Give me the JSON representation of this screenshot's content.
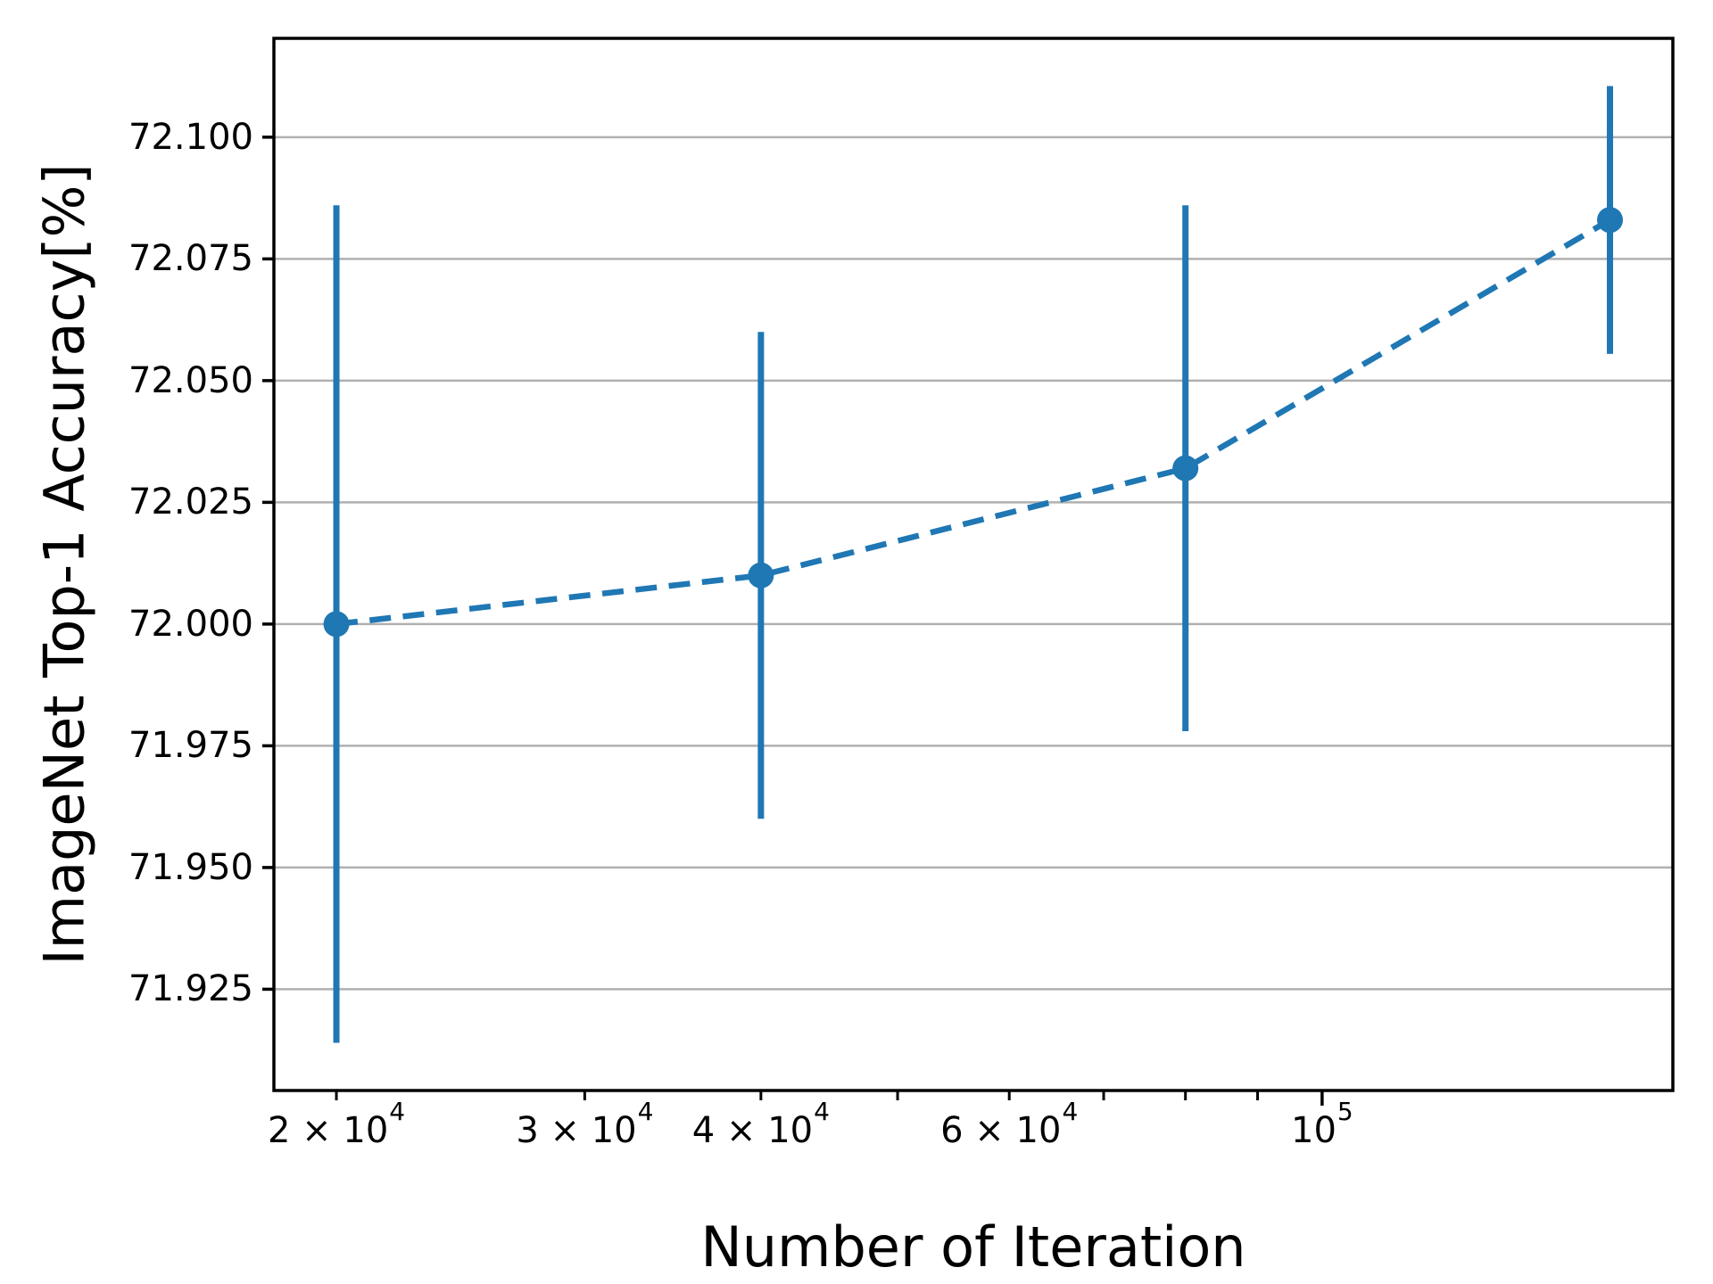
{
  "chart_data": {
    "type": "line",
    "title": "",
    "xlabel": "Number of Iteration",
    "ylabel": "ImageNet Top-1 Accuracy[%]",
    "x_scale": "log10",
    "xlim": [
      18060,
      177300
    ],
    "ylim": [
      71.9042,
      72.1203
    ],
    "grid": "horizontal-only",
    "legend": "none",
    "colors": {
      "series": "#1f77b4",
      "grid": "#b0b0b0",
      "spine": "#000000",
      "text": "#000000",
      "background": "#ffffff"
    },
    "series": [
      {
        "name": "imagenet-top1-accuracy",
        "line_style": "dashed",
        "marker": "circle",
        "x": [
          20000,
          40000,
          80000,
          160000
        ],
        "y": [
          72.0,
          72.01,
          72.032,
          72.083
        ],
        "yerr": [
          0.086,
          0.05,
          0.054,
          0.0275
        ]
      }
    ],
    "x_ticks": [
      {
        "value": 20000,
        "text": "2 × 10",
        "sup": "4",
        "major": false
      },
      {
        "value": 30000,
        "text": "3 × 10",
        "sup": "4",
        "major": false
      },
      {
        "value": 40000,
        "text": "4 × 10",
        "sup": "4",
        "major": false
      },
      {
        "value": 50000,
        "text": "",
        "sup": "",
        "major": false
      },
      {
        "value": 60000,
        "text": "6 × 10",
        "sup": "4",
        "major": false
      },
      {
        "value": 70000,
        "text": "",
        "sup": "",
        "major": false
      },
      {
        "value": 80000,
        "text": "",
        "sup": "",
        "major": false
      },
      {
        "value": 90000,
        "text": "",
        "sup": "",
        "major": false
      },
      {
        "value": 100000,
        "text": "10",
        "sup": "5",
        "major": true
      }
    ],
    "y_ticks": [
      {
        "value": 71.925,
        "text": "71.925"
      },
      {
        "value": 71.95,
        "text": "71.950"
      },
      {
        "value": 71.975,
        "text": "71.975"
      },
      {
        "value": 72.0,
        "text": "72.000"
      },
      {
        "value": 72.025,
        "text": "72.025"
      },
      {
        "value": 72.05,
        "text": "72.050"
      },
      {
        "value": 72.075,
        "text": "72.075"
      },
      {
        "value": 72.1,
        "text": "72.100"
      }
    ]
  }
}
